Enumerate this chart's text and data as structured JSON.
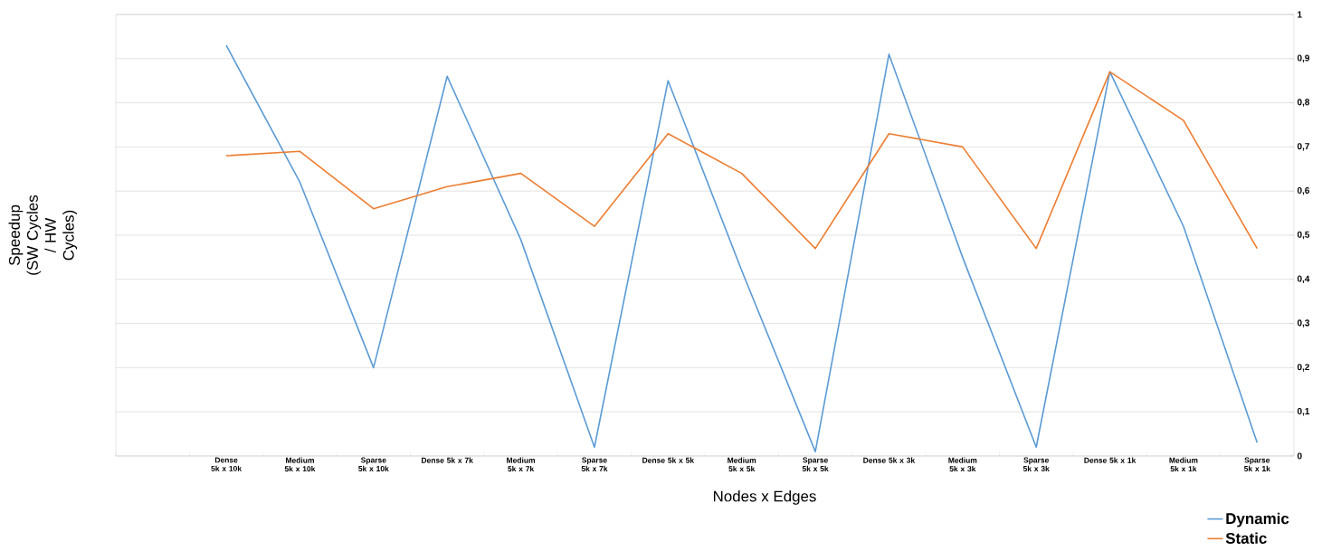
{
  "chart_data": {
    "type": "line",
    "xlabel": "Nodes x Edges",
    "ylabel": "Speedup (SW Cycles / HW Cycles)",
    "categories": [
      null,
      "Dense 5k x 10k",
      "Medium 5k x 10k",
      "Sparse 5k x 10k",
      "Dense 5k x 7k",
      "Medium 5k x 7k",
      "Sparse 5k x 7k",
      "Dense 5k x 5k",
      "Medium 5k x 5k",
      "Sparse 5k x 5k",
      "Dense 5k x 3k",
      "Medium 5k x 3k",
      "Sparse 5k x 3k",
      "Dense 5k x 1k",
      "Medium 5k x 1k",
      "Sparse 5k x 1k"
    ],
    "series": [
      {
        "name": "Dynamic",
        "color": "#5b9bd5",
        "values": [
          null,
          0.93,
          0.62,
          0.2,
          0.86,
          0.49,
          0.02,
          0.85,
          0.42,
          0.01,
          0.91,
          0.45,
          0.02,
          0.87,
          0.52,
          0.03
        ]
      },
      {
        "name": "Static",
        "color": "#ed7d31",
        "values": [
          null,
          0.68,
          0.69,
          0.56,
          0.61,
          0.64,
          0.52,
          0.73,
          0.64,
          0.47,
          0.73,
          0.7,
          0.47,
          0.87,
          0.76,
          0.47
        ]
      }
    ],
    "ylim": [
      0,
      1
    ],
    "yticks": [
      0,
      {
        "value": 0.1,
        "label": "0,1"
      },
      {
        "value": 0.2,
        "label": "0,2"
      },
      {
        "value": 0.3,
        "label": "0,3"
      },
      {
        "value": 0.4,
        "label": "0,4"
      },
      {
        "value": 0.5,
        "label": "0,5"
      },
      {
        "value": 0.6,
        "label": "0,6"
      },
      {
        "value": 0.7,
        "label": "0,7"
      },
      {
        "value": 0.8,
        "label": "0,8"
      },
      {
        "value": 0.9,
        "label": "0,9"
      },
      1
    ],
    "grid": "y",
    "legend": "bottom right",
    "marker": "none",
    "line_style": "solid"
  }
}
